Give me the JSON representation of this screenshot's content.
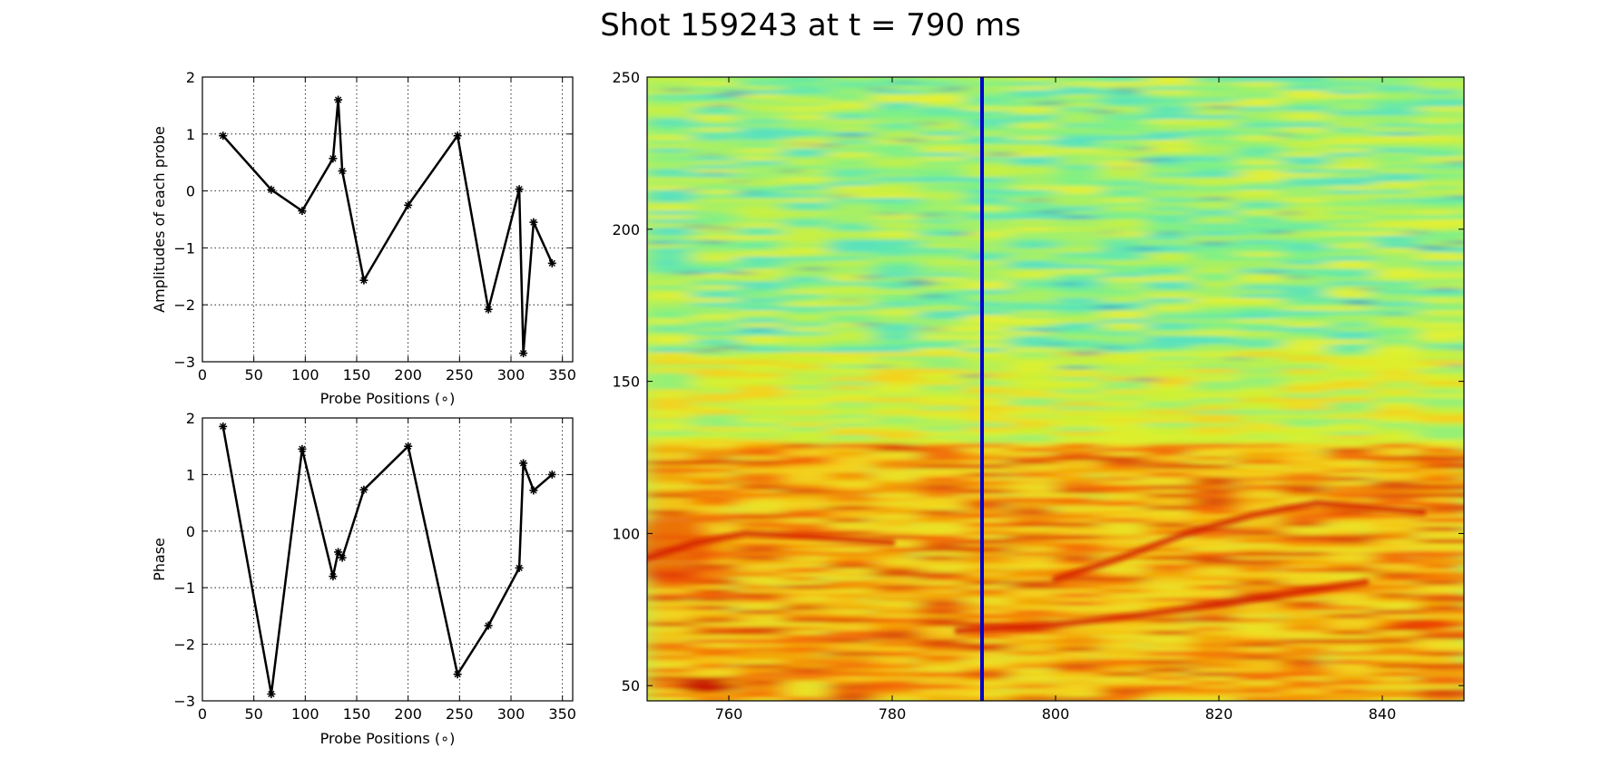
{
  "figure": {
    "title": "Shot 159243 at t = 790 ms"
  },
  "chart_data": [
    {
      "type": "line",
      "xlabel": "Probe Positions ($^\\circ$)",
      "xlabel_display": "Probe Positions (∘)",
      "ylabel": "Amplitudes of each probe",
      "xlim": [
        0,
        360
      ],
      "ylim": [
        -3,
        2
      ],
      "xticks": [
        0,
        50,
        100,
        150,
        200,
        250,
        300,
        350
      ],
      "yticks": [
        -3,
        -2,
        -1,
        0,
        1,
        2
      ],
      "grid": true,
      "marker": "star",
      "color": "#000000",
      "x": [
        20,
        67,
        97,
        127,
        132,
        136,
        157,
        200,
        248,
        278,
        308,
        312,
        322,
        340
      ],
      "y": [
        0.97,
        0.02,
        -0.35,
        0.57,
        1.6,
        0.35,
        -1.57,
        -0.25,
        0.97,
        -2.08,
        0.03,
        -2.85,
        -0.55,
        -1.27
      ]
    },
    {
      "type": "line",
      "xlabel": "Probe Positions ($^\\circ$)",
      "xlabel_display": "Probe Positions (∘)",
      "ylabel": "Phase",
      "xlim": [
        0,
        360
      ],
      "ylim": [
        -3,
        2
      ],
      "xticks": [
        0,
        50,
        100,
        150,
        200,
        250,
        300,
        350
      ],
      "yticks": [
        -3,
        -2,
        -1,
        0,
        1,
        2
      ],
      "grid": true,
      "marker": "star",
      "color": "#000000",
      "x": [
        20,
        67,
        97,
        127,
        132,
        136,
        157,
        200,
        248,
        278,
        308,
        312,
        322,
        340
      ],
      "y": [
        1.85,
        -2.88,
        1.45,
        -0.8,
        -0.37,
        -0.47,
        0.73,
        1.5,
        -2.53,
        -1.67,
        -0.65,
        1.2,
        0.72,
        1.0
      ]
    },
    {
      "type": "heatmap",
      "colormap": "jet",
      "xlim": [
        750,
        850
      ],
      "ylim": [
        45,
        250
      ],
      "xticks": [
        760,
        780,
        800,
        820,
        840
      ],
      "yticks": [
        50,
        100,
        150,
        200,
        250
      ],
      "marker_line": {
        "x": 791,
        "color": "#0000cc"
      },
      "features": [
        {
          "description": "branch",
          "points": [
            [
              788,
              68
            ],
            [
              800,
              70
            ],
            [
              810,
              73
            ],
            [
              818,
              76
            ],
            [
              828,
              80
            ],
            [
              838,
              84
            ]
          ]
        },
        {
          "description": "branch",
          "points": [
            [
              800,
              85
            ],
            [
              808,
              92
            ],
            [
              816,
              100
            ],
            [
              824,
              106
            ],
            [
              832,
              110
            ],
            [
              845,
              107
            ]
          ]
        },
        {
          "description": "branch",
          "points": [
            [
              750,
              92
            ],
            [
              756,
              97
            ],
            [
              762,
              100
            ],
            [
              770,
              99
            ],
            [
              780,
              97
            ]
          ]
        }
      ]
    }
  ]
}
